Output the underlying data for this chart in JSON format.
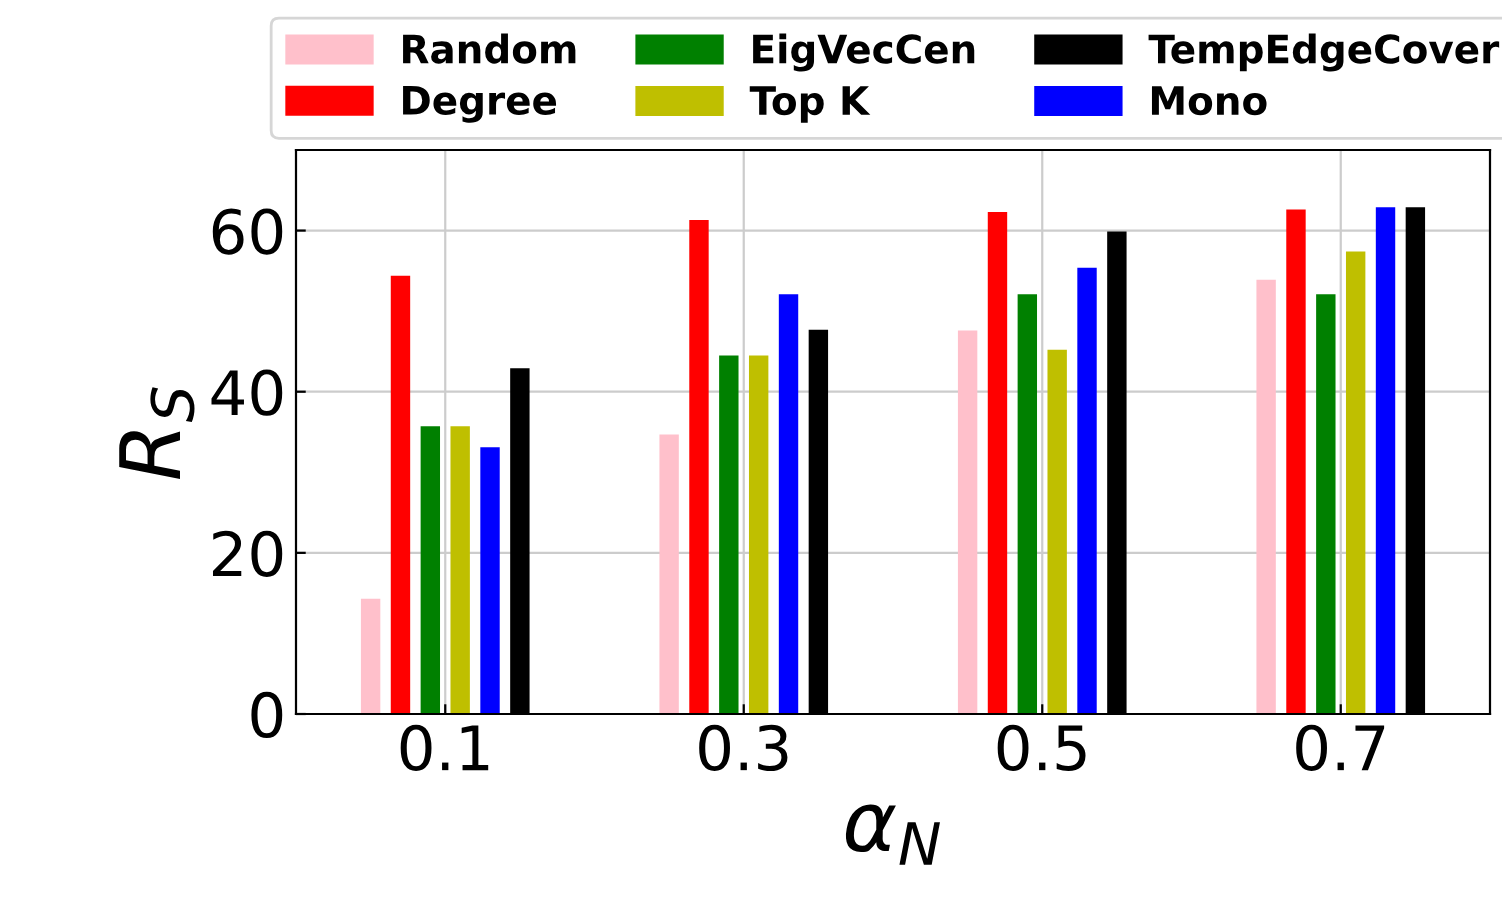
{
  "chart_data": {
    "type": "bar",
    "xlabel": "α$_{N}$",
    "ylabel": "R$_{S}$",
    "categories": [
      "0.1",
      "0.3",
      "0.5",
      "0.7"
    ],
    "series": [
      {
        "name": "Random",
        "color": "#ffc0cb",
        "values": [
          14.3,
          34.7,
          47.6,
          53.9
        ]
      },
      {
        "name": "Degree",
        "color": "#ff0000",
        "values": [
          54.4,
          61.3,
          62.3,
          62.6
        ]
      },
      {
        "name": "EigVecCen",
        "color": "#008000",
        "values": [
          35.7,
          44.5,
          52.1,
          52.1
        ]
      },
      {
        "name": "Top K",
        "color": "#bfbf00",
        "values": [
          35.7,
          44.5,
          45.2,
          57.4
        ]
      },
      {
        "name": "TempEdgeCover",
        "color": "#000000",
        "values": [
          42.9,
          47.7,
          59.9,
          62.9
        ]
      },
      {
        "name": "Mono",
        "color": "#0000ff",
        "values": [
          33.1,
          52.1,
          55.4,
          62.9
        ]
      }
    ],
    "ylim": [
      0,
      70
    ],
    "yticks": [
      0,
      20,
      40,
      60
    ],
    "grid": true,
    "legend": "top"
  }
}
